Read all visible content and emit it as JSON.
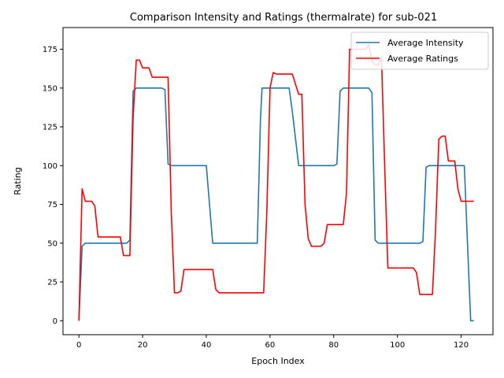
{
  "chart_data": {
    "type": "line",
    "title": "Comparison Intensity and Ratings (thermalrate) for sub-021",
    "xlabel": "Epoch Index",
    "ylabel": "Rating",
    "xlim": [
      -5,
      130
    ],
    "ylim": [
      -9,
      189
    ],
    "x_ticks": [
      0,
      20,
      40,
      60,
      80,
      100,
      120
    ],
    "y_ticks": [
      0,
      25,
      50,
      75,
      100,
      125,
      150,
      175
    ],
    "grid": false,
    "legend_position": "top-right",
    "series": [
      {
        "name": "Average Intensity",
        "color": "#1f77b4",
        "points": [
          [
            0,
            0
          ],
          [
            1,
            48
          ],
          [
            2,
            50
          ],
          [
            15,
            50
          ],
          [
            16,
            52
          ],
          [
            17,
            148
          ],
          [
            18,
            150
          ],
          [
            26,
            150
          ],
          [
            27,
            149
          ],
          [
            28,
            101
          ],
          [
            29,
            100
          ],
          [
            40,
            100
          ],
          [
            42,
            50
          ],
          [
            56,
            50
          ],
          [
            57,
            130
          ],
          [
            57.5,
            150
          ],
          [
            66,
            150
          ],
          [
            67,
            135
          ],
          [
            69,
            100
          ],
          [
            80,
            100
          ],
          [
            81,
            101
          ],
          [
            82,
            148
          ],
          [
            83,
            150
          ],
          [
            90,
            150
          ],
          [
            91,
            150
          ],
          [
            92,
            147
          ],
          [
            93,
            52
          ],
          [
            94,
            50
          ],
          [
            107,
            50
          ],
          [
            108,
            51
          ],
          [
            109,
            99
          ],
          [
            110,
            100
          ],
          [
            121,
            100
          ],
          [
            123,
            0
          ],
          [
            124,
            0
          ]
        ]
      },
      {
        "name": "Average Ratings",
        "color": "#ff0000",
        "points": [
          [
            0,
            0
          ],
          [
            1,
            85
          ],
          [
            2,
            77
          ],
          [
            4,
            77
          ],
          [
            5,
            74
          ],
          [
            6,
            54
          ],
          [
            13,
            54
          ],
          [
            14,
            42
          ],
          [
            16,
            42
          ],
          [
            17,
            130
          ],
          [
            18,
            168
          ],
          [
            19,
            168
          ],
          [
            20,
            163
          ],
          [
            22,
            163
          ],
          [
            23,
            157
          ],
          [
            28,
            157
          ],
          [
            29,
            70
          ],
          [
            30,
            18
          ],
          [
            31,
            18
          ],
          [
            32,
            19
          ],
          [
            33,
            33
          ],
          [
            42,
            33
          ],
          [
            43,
            20
          ],
          [
            44,
            18
          ],
          [
            58,
            18
          ],
          [
            59,
            70
          ],
          [
            60,
            150
          ],
          [
            61,
            160
          ],
          [
            62,
            159
          ],
          [
            67,
            159
          ],
          [
            69,
            146
          ],
          [
            70,
            146
          ],
          [
            71,
            75
          ],
          [
            72,
            53
          ],
          [
            73,
            48
          ],
          [
            76,
            48
          ],
          [
            77,
            50
          ],
          [
            78,
            62
          ],
          [
            83,
            62
          ],
          [
            84,
            82
          ],
          [
            85,
            175
          ],
          [
            86,
            175
          ],
          [
            90,
            175
          ],
          [
            91,
            178
          ],
          [
            92,
            167
          ],
          [
            93,
            165
          ],
          [
            94,
            165
          ],
          [
            95,
            170
          ],
          [
            96,
            100
          ],
          [
            97,
            34
          ],
          [
            105,
            34
          ],
          [
            106,
            31
          ],
          [
            107,
            17
          ],
          [
            111,
            17
          ],
          [
            112,
            60
          ],
          [
            113,
            117
          ],
          [
            114,
            119
          ],
          [
            115,
            119
          ],
          [
            116,
            103
          ],
          [
            118,
            103
          ],
          [
            119,
            85
          ],
          [
            120,
            77
          ],
          [
            124,
            77
          ]
        ]
      }
    ]
  }
}
